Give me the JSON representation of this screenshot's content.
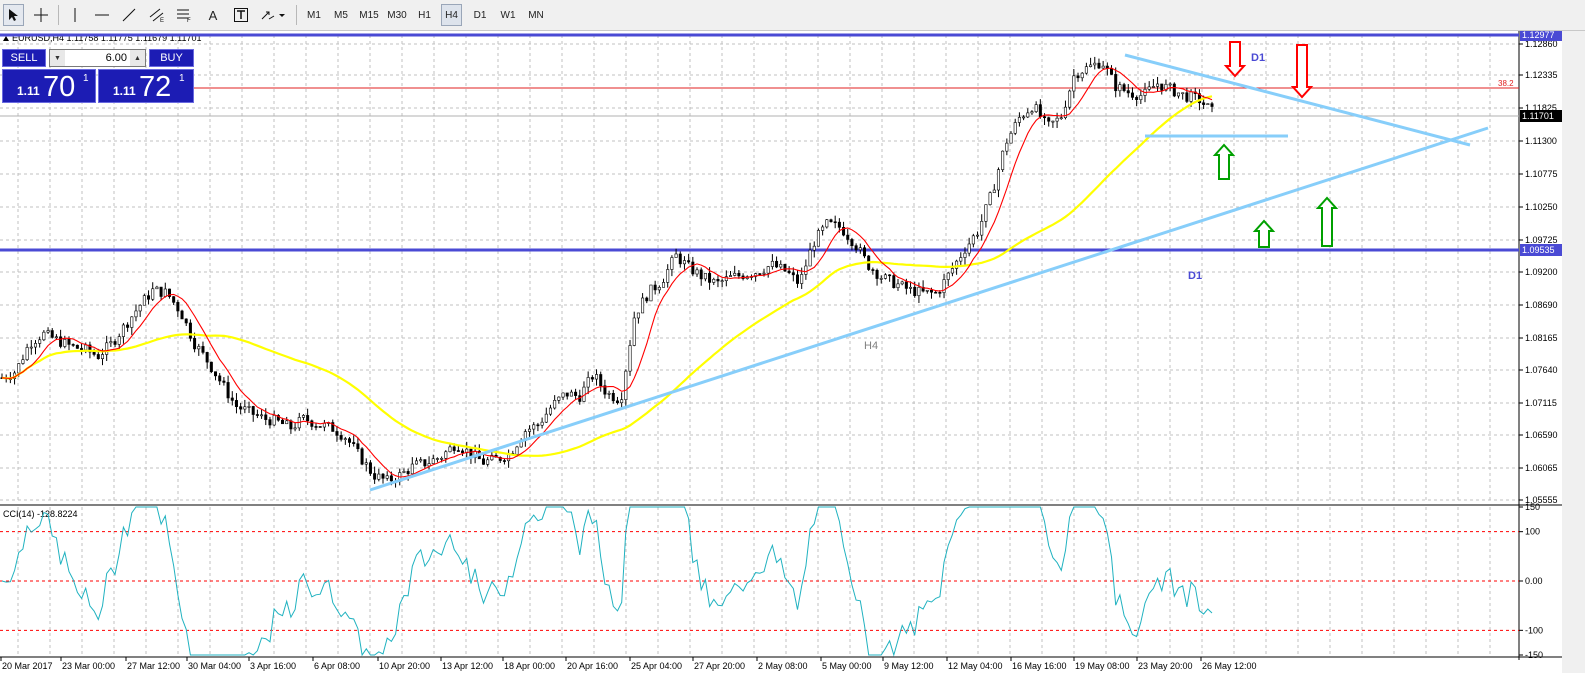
{
  "toolbar": {
    "timeframes": [
      "M1",
      "M5",
      "M15",
      "M30",
      "H1",
      "H4",
      "D1",
      "W1",
      "MN"
    ],
    "active_timeframe": "H4"
  },
  "chart_info": {
    "header": "EURUSD,H4  1.11758 1.11775 1.11679 1.11701"
  },
  "trade_panel": {
    "sell_label": "SELL",
    "buy_label": "BUY",
    "lot": "6.00",
    "sell_small": "1.11",
    "sell_big": "70",
    "sell_sup": "1",
    "buy_small": "1.11",
    "buy_big": "72",
    "buy_sup": "1"
  },
  "colors": {
    "grid": "#c0c0c0",
    "axis": "#000000",
    "candle": "#000000",
    "ma_fast": "#ff0000",
    "ma_slow": "#ffff00",
    "trend": "#87cefa",
    "level": "#4a4ad4",
    "cci": "#20b2c0",
    "cci_levels": "#ff0000",
    "arrow_down": "#ff0000",
    "arrow_up": "#00a000",
    "label_d1": "#4a4ad4",
    "label_h4": "#808080"
  },
  "chart_data": {
    "type": "candlestick",
    "symbol": "EURUSD",
    "timeframe": "H4",
    "price_ticks": [
      "1.12860",
      "1.12335",
      "1.11825",
      "1.11300",
      "1.10775",
      "1.10250",
      "1.09725",
      "1.09200",
      "1.08690",
      "1.08165",
      "1.07640",
      "1.07115",
      "1.06590",
      "1.06065",
      "1.05555"
    ],
    "price_range": [
      1.0545,
      1.1292
    ],
    "time_labels": [
      "20 Mar 2017",
      "23 Mar 00:00",
      "27 Mar 12:00",
      "30 Mar 04:00",
      "3 Apr 16:00",
      "6 Apr 08:00",
      "10 Apr 20:00",
      "13 Apr 12:00",
      "18 Apr 00:00",
      "20 Apr 16:00",
      "25 Apr 04:00",
      "27 Apr 20:00",
      "2 May 08:00",
      "5 May 00:00",
      "9 May 12:00",
      "12 May 04:00",
      "16 May 16:00",
      "19 May 08:00",
      "23 May 20:00",
      "26 May 12:00"
    ],
    "close_path": [
      1.0745,
      1.0755,
      1.08,
      1.0815,
      1.0805,
      1.0795,
      1.079,
      1.078,
      1.08,
      1.083,
      1.086,
      1.0885,
      1.088,
      1.085,
      1.08,
      1.077,
      1.0735,
      1.07,
      1.069,
      1.068,
      1.0675,
      1.0665,
      1.068,
      1.067,
      1.0665,
      1.065,
      1.062,
      1.059,
      1.058,
      1.059,
      1.0605,
      1.061,
      1.062,
      1.064,
      1.0625,
      1.061,
      1.0615,
      1.0625,
      1.066,
      1.067,
      1.07,
      1.072,
      1.0715,
      1.075,
      1.072,
      1.071,
      1.0845,
      1.088,
      1.09,
      1.094,
      1.092,
      1.0905,
      1.0895,
      1.0905,
      1.091,
      1.0915,
      1.0925,
      1.0915,
      1.0895,
      1.096,
      1.099,
      1.0985,
      1.096,
      1.0925,
      1.0905,
      1.0895,
      1.0885,
      1.088,
      1.088,
      1.0915,
      1.095,
      1.098,
      1.104,
      1.112,
      1.116,
      1.118,
      1.1145,
      1.116,
      1.123,
      1.124,
      1.125,
      1.121,
      1.12,
      1.1195,
      1.1215,
      1.1205,
      1.1195,
      1.119,
      1.117
    ],
    "ma_fast_desc": "red moving average following price",
    "ma_slow_desc": "yellow moving average",
    "horizontal_levels": [
      {
        "price": 1.12977,
        "label": "1.12977"
      },
      {
        "price": 1.09535,
        "label": "1.09535"
      }
    ],
    "current_price": {
      "price": 1.11701,
      "label": "1.11701"
    },
    "fib_label": "38.2",
    "annotations": [
      "D1",
      "D1",
      "H4"
    ],
    "indicator": {
      "name": "CCI(14) -128.8224",
      "ticks": [
        "150",
        "100",
        "0.00",
        "-100",
        "-150"
      ],
      "levels": [
        100,
        0,
        -100
      ],
      "range": [
        -150,
        150
      ]
    }
  }
}
